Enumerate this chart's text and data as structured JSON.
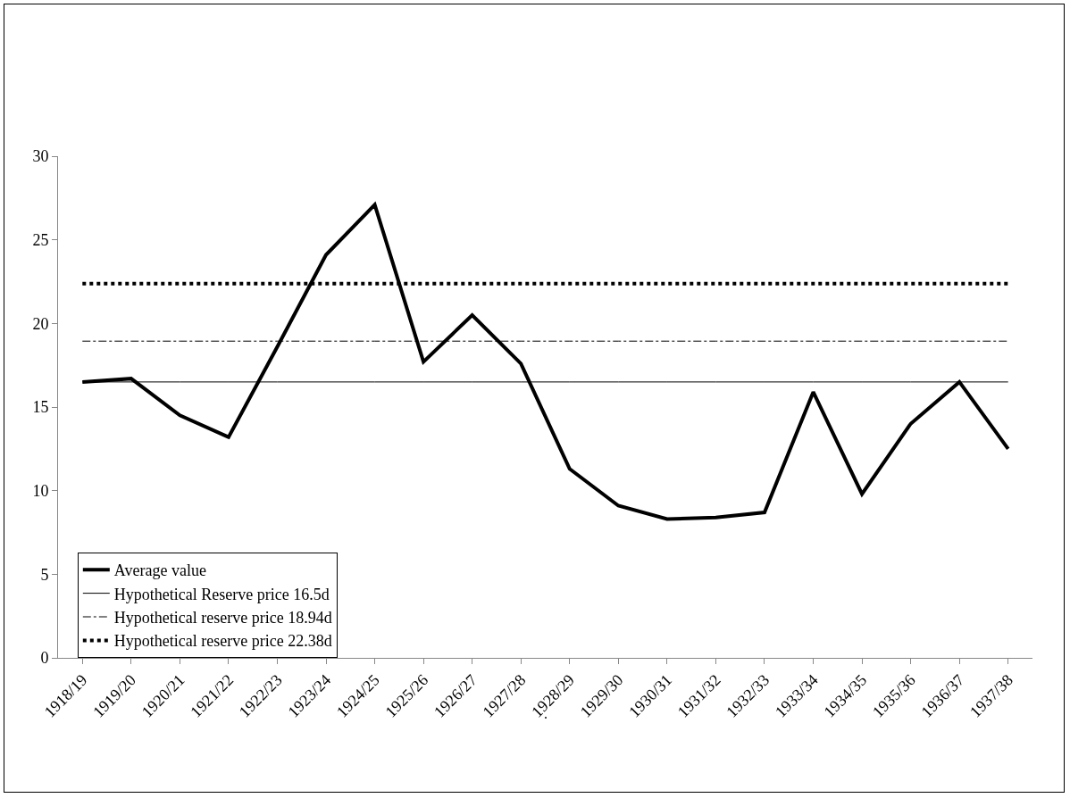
{
  "chart_data": {
    "type": "line",
    "categories": [
      "1918/19",
      "1919/20",
      "1920/21",
      "1921/22",
      "1922/23",
      "1923/24",
      "1924/25",
      "1925/26",
      "1926/27",
      "1927/28",
      "1928/29",
      "1929/30",
      "1930/31",
      "1931/32",
      "1932/33",
      "1933/34",
      "1934/35",
      "1935/36",
      "1936/37",
      "1937/38"
    ],
    "series": [
      {
        "name": "Average value",
        "color": "#000000",
        "line_style": "solid",
        "values": [
          16.5,
          16.7,
          14.5,
          13.2,
          18.6,
          24.1,
          27.1,
          17.7,
          20.5,
          17.6,
          11.3,
          9.1,
          8.3,
          8.4,
          8.7,
          15.9,
          9.8,
          14.0,
          16.5,
          12.5
        ]
      },
      {
        "name": "Hypothetical Reserve price 16.5d",
        "color": "#000000",
        "line_style": "solid",
        "values": [
          16.5,
          16.5,
          16.5,
          16.5,
          16.5,
          16.5,
          16.5,
          16.5,
          16.5,
          16.5,
          16.5,
          16.5,
          16.5,
          16.5,
          16.5,
          16.5,
          16.5,
          16.5,
          16.5,
          16.5
        ]
      },
      {
        "name": "Hypothetical reserve price 18.94d",
        "color": "#000000",
        "line_style": "dashdot",
        "values": [
          18.94,
          18.94,
          18.94,
          18.94,
          18.94,
          18.94,
          18.94,
          18.94,
          18.94,
          18.94,
          18.94,
          18.94,
          18.94,
          18.94,
          18.94,
          18.94,
          18.94,
          18.94,
          18.94,
          18.94
        ]
      },
      {
        "name": "Hypothetical reserve price 22.38d",
        "color": "#000000",
        "line_style": "dotted",
        "values": [
          22.38,
          22.38,
          22.38,
          22.38,
          22.38,
          22.38,
          22.38,
          22.38,
          22.38,
          22.38,
          22.38,
          22.38,
          22.38,
          22.38,
          22.38,
          22.38,
          22.38,
          22.38,
          22.38,
          22.38
        ]
      }
    ],
    "ylim": [
      0,
      30
    ],
    "yticks": [
      0,
      5,
      10,
      15,
      20,
      25,
      30
    ],
    "grid": false,
    "legend": "bottom left",
    "marker": "none",
    "annotations": [
      "."
    ]
  }
}
